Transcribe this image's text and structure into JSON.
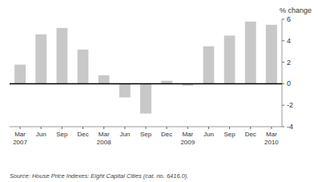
{
  "chart_data": {
    "type": "bar",
    "categories": [
      "Mar\n2007",
      "Jun",
      "Sep",
      "Dec",
      "Mar\n2008",
      "Jun",
      "Sep",
      "Dec",
      "Mar\n2009",
      "Jun",
      "Sep",
      "Dec",
      "Mar\n2010"
    ],
    "values": [
      1.8,
      4.6,
      5.2,
      3.2,
      0.8,
      -1.3,
      -2.8,
      0.3,
      -0.2,
      3.5,
      4.5,
      5.8,
      5.5
    ],
    "color": "#c8c8c8",
    "ylabel": "% change",
    "source": "Source: House Price Indexes: Eight Capital Cities (cat.  no.  6416.0).",
    "ylim": [
      -4,
      6
    ],
    "yticks": [
      -4,
      -2,
      0,
      2,
      4,
      6
    ],
    "grid": false
  }
}
